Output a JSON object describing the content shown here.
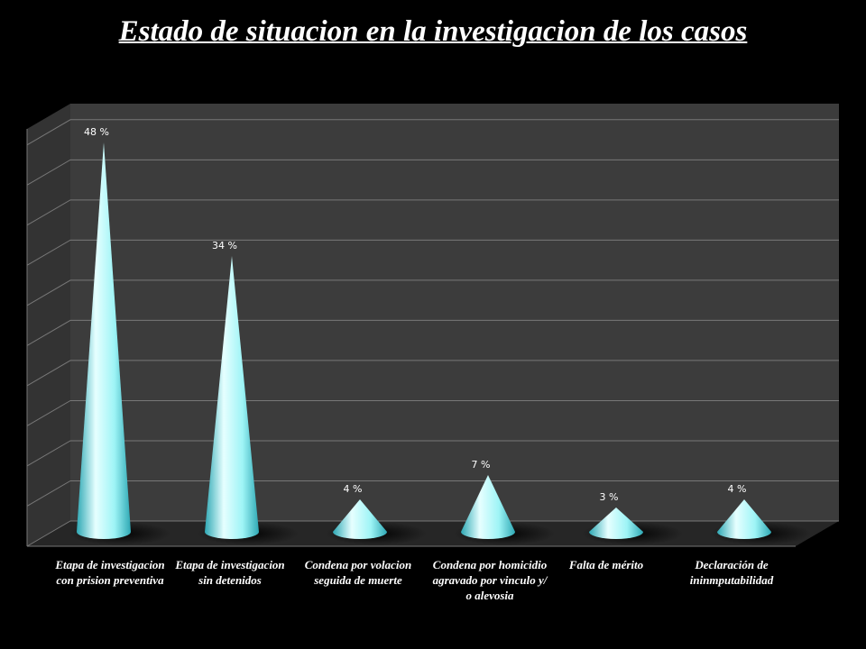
{
  "title": "Estado de situacion en la investigacion de los casos",
  "colors": {
    "background": "#000000",
    "wall": "#3c3c3c",
    "gridline": "#777777",
    "cone_light": "#e6ffff",
    "cone_mid": "#9ef4f6",
    "cone_dark": "#2ea8b4",
    "text": "#ffffff"
  },
  "chart_data": {
    "type": "bar",
    "style": "3d-cone",
    "title": "Estado de situacion en la investigacion de los casos",
    "categories": [
      "Etapa de investigacion con prision preventiva",
      "Etapa de investigacion sin detenidos",
      "Condena por volacion seguida de muerte",
      "Condena por homicidio agravado por vinculo y/ o alevosia",
      "Falta de mérito",
      "Declaración de ininmputabilidad"
    ],
    "values": [
      48,
      34,
      4,
      7,
      3,
      4
    ],
    "data_labels": [
      "48 %",
      "34 %",
      "4 %",
      "7 %",
      "3 %",
      "4 %"
    ],
    "ylim": [
      0,
      52
    ],
    "grid": true,
    "legend": "none"
  }
}
